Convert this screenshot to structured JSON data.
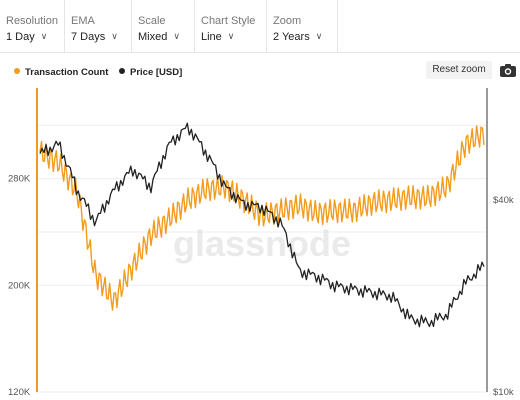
{
  "toolbar": {
    "resolution": {
      "label": "Resolution",
      "value": "1 Day"
    },
    "ema": {
      "label": "EMA",
      "value": "7 Days"
    },
    "scale": {
      "label": "Scale",
      "value": "Mixed"
    },
    "chart_style": {
      "label": "Chart Style",
      "value": "Line"
    },
    "zoom": {
      "label": "Zoom",
      "value": "2 Years"
    }
  },
  "actions": {
    "reset_zoom": "Reset zoom",
    "camera_icon": "camera-icon"
  },
  "watermark": "glassnode",
  "colors": {
    "transaction_count": "#f29b1d",
    "price": "#222222",
    "axis_left": "#f29b1d"
  },
  "chart_data": {
    "type": "line",
    "title": "",
    "xlabel": "",
    "legend_position": "top-left",
    "grid": "horizontal",
    "x": [
      0,
      1,
      2,
      3,
      4,
      5,
      6,
      7,
      8,
      9,
      10,
      11,
      12,
      13,
      14,
      15,
      16,
      17,
      18,
      19,
      20,
      21,
      22,
      23,
      24
    ],
    "y_left": {
      "ticks": [
        "120K",
        "200K",
        "280K"
      ],
      "tick_values": [
        120000,
        200000,
        280000
      ],
      "ylim": [
        120000,
        348000
      ]
    },
    "y_right": {
      "ticks": [
        "$10k",
        "$40k"
      ],
      "tick_values": [
        10000,
        40000
      ],
      "scale": "log",
      "ylim": [
        10000,
        90000
      ]
    },
    "series": [
      {
        "name": "Transaction Count",
        "axis": "left",
        "values": [
          300000,
          292000,
          270000,
          208000,
          188000,
          214000,
          238000,
          250000,
          264000,
          272000,
          274000,
          264000,
          252000,
          256000,
          260000,
          254000,
          256000,
          256000,
          262000,
          264000,
          266000,
          266000,
          274000,
          306000,
          314000
        ]
      },
      {
        "name": "Price [USD]",
        "axis": "right",
        "values": [
          56000,
          60000,
          43000,
          34000,
          43000,
          50000,
          44000,
          60000,
          68000,
          56000,
          44000,
          39000,
          38000,
          34000,
          24000,
          23000,
          21500,
          21000,
          20500,
          20000,
          17000,
          16500,
          17500,
          22000,
          25000
        ]
      }
    ]
  }
}
